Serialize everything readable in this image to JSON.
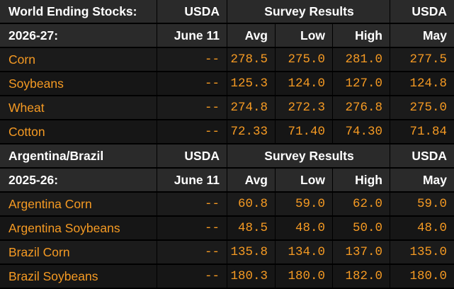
{
  "colors": {
    "header_bg": "#2a2a2a",
    "row_bg": "#1b1b1b",
    "text_orange": "#f59a23",
    "text_white": "#ffffff"
  },
  "sections": [
    {
      "header1": {
        "label": "World Ending Stocks:",
        "usda": "USDA",
        "survey": "Survey Results",
        "usda2": "USDA"
      },
      "header2": {
        "label": "2026-27:",
        "june": "June 11",
        "avg": "Avg",
        "low": "Low",
        "high": "High",
        "may": "May"
      },
      "rows": [
        {
          "name": "Corn",
          "june": "--",
          "avg": "278.5",
          "low": "275.0",
          "high": "281.0",
          "may": "277.5"
        },
        {
          "name": "Soybeans",
          "june": "--",
          "avg": "125.3",
          "low": "124.0",
          "high": "127.0",
          "may": "124.8"
        },
        {
          "name": "Wheat",
          "june": "--",
          "avg": "274.8",
          "low": "272.3",
          "high": "276.8",
          "may": "275.0"
        },
        {
          "name": "Cotton",
          "june": "--",
          "avg": "72.33",
          "low": "71.40",
          "high": "74.30",
          "may": "71.84"
        }
      ]
    },
    {
      "header1": {
        "label": "Argentina/Brazil",
        "usda": "USDA",
        "survey": "Survey Results",
        "usda2": "USDA"
      },
      "header2": {
        "label": "2025-26:",
        "june": "June 11",
        "avg": "Avg",
        "low": "Low",
        "high": "High",
        "may": "May"
      },
      "rows": [
        {
          "name": "Argentina Corn",
          "june": "--",
          "avg": "60.8",
          "low": "59.0",
          "high": "62.0",
          "may": "59.0"
        },
        {
          "name": "Argentina Soybeans",
          "june": "--",
          "avg": "48.5",
          "low": "48.0",
          "high": "50.0",
          "may": "48.0"
        },
        {
          "name": "Brazil Corn",
          "june": "--",
          "avg": "135.8",
          "low": "134.0",
          "high": "137.0",
          "may": "135.0"
        },
        {
          "name": "Brazil Soybeans",
          "june": "--",
          "avg": "180.3",
          "low": "180.0",
          "high": "182.0",
          "may": "180.0"
        }
      ]
    }
  ]
}
